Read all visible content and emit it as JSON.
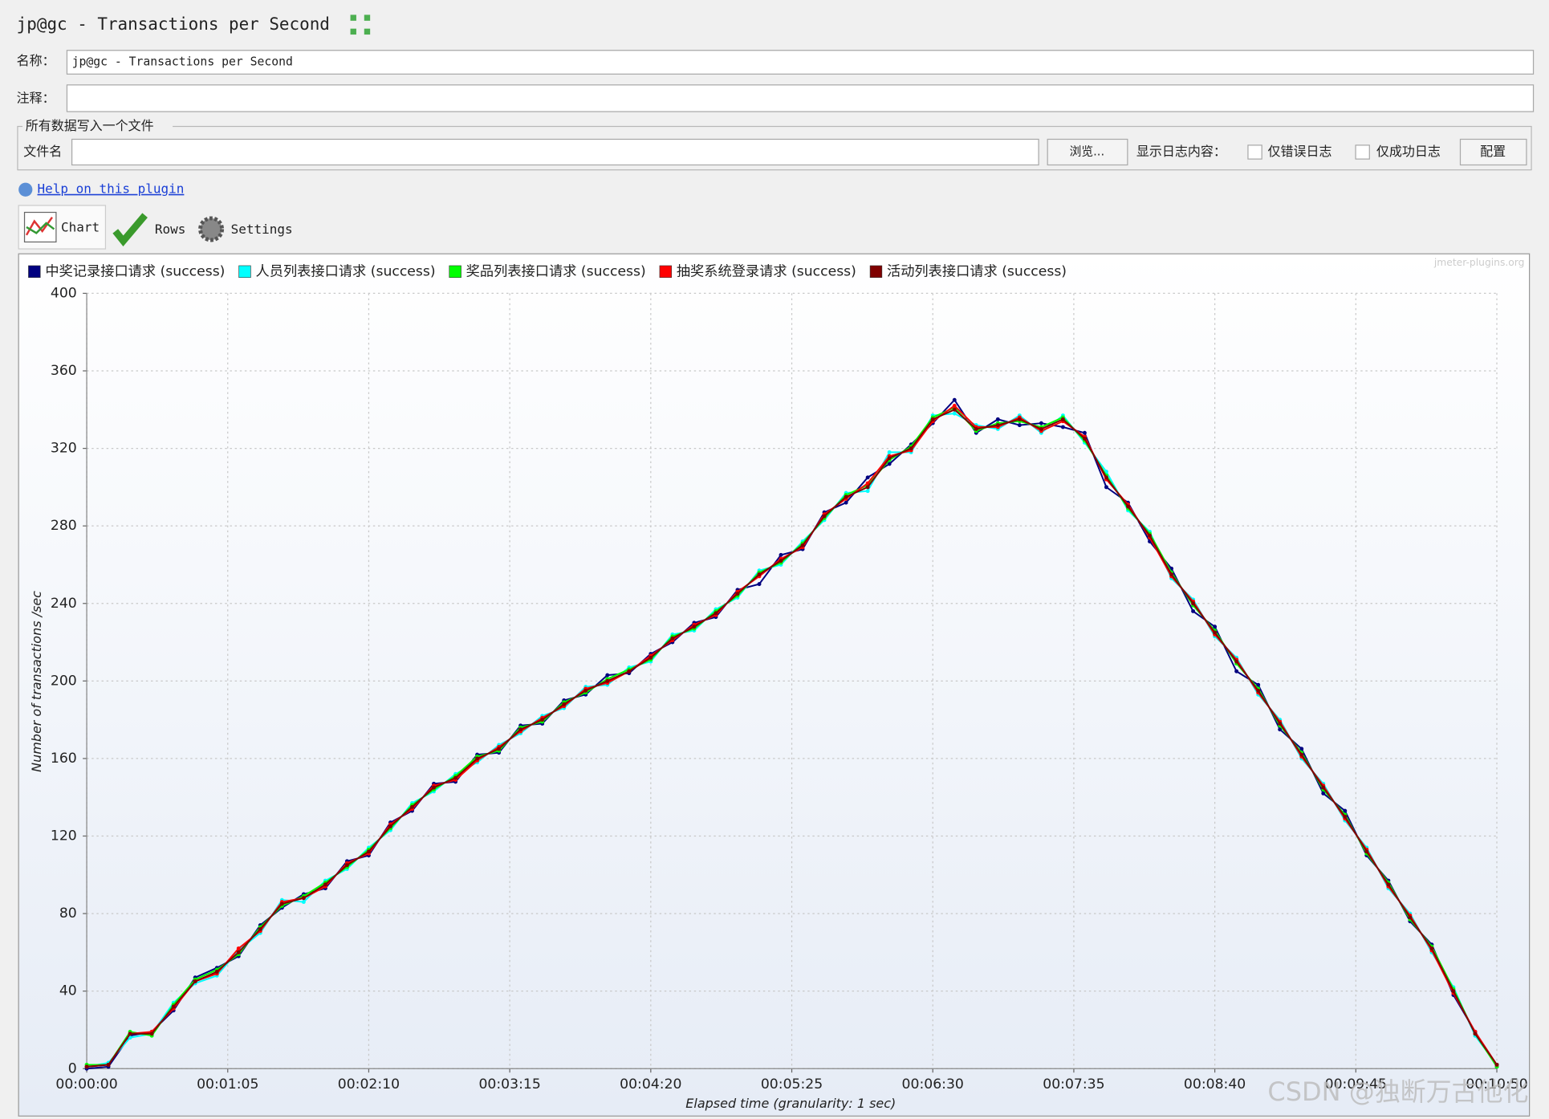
{
  "window": {
    "title": "jp@gc - Transactions per Second",
    "name_label": "名称：",
    "name_value": "jp@gc - Transactions per Second",
    "comment_label": "注释：",
    "file_group": "所有数据写入一个文件",
    "file_label": "文件名",
    "browse": "浏览...",
    "log_label": "显示日志内容：",
    "errors_only": "仅错误日志",
    "success_only": "仅成功日志",
    "configure": "配置",
    "help": "Help on this plugin",
    "tabs": [
      "Chart",
      "Rows",
      "Settings"
    ],
    "watermark": "CSDN @独断万古他化"
  },
  "chart_data": {
    "type": "line",
    "xlabel": "Elapsed time (granularity: 1 sec)",
    "ylabel": "Number of transactions /sec",
    "credit": "jmeter-plugins.org",
    "x": [
      0,
      10,
      20,
      30,
      40,
      50,
      60,
      70,
      80,
      90,
      100,
      110,
      120,
      130,
      140,
      150,
      160,
      170,
      180,
      190,
      200,
      210,
      220,
      230,
      240,
      250,
      260,
      270,
      280,
      290,
      300,
      310,
      320,
      330,
      340,
      350,
      360,
      370,
      380,
      390,
      400,
      410,
      420,
      430,
      440,
      450,
      460,
      470,
      480,
      490,
      500,
      510,
      520,
      530,
      540,
      550,
      560,
      570,
      580,
      590,
      600,
      610,
      620,
      630,
      640,
      650
    ],
    "series": [
      {
        "name": "中奖记录接口请求 (success)",
        "color": "#000080",
        "values": [
          0,
          1,
          17,
          19,
          30,
          47,
          52,
          58,
          74,
          83,
          90,
          93,
          107,
          110,
          127,
          133,
          147,
          148,
          162,
          163,
          177,
          178,
          190,
          193,
          203,
          204,
          214,
          220,
          230,
          233,
          247,
          250,
          265,
          268,
          287,
          292,
          305,
          312,
          322,
          333,
          345,
          328,
          335,
          332,
          333,
          331,
          328,
          300,
          292,
          272,
          258,
          236,
          228,
          205,
          198,
          175,
          165,
          142,
          133,
          110,
          97,
          76,
          64,
          38,
          19,
          1
        ]
      },
      {
        "name": "人员列表接口请求 (success)",
        "color": "#00ffff",
        "values": [
          1,
          3,
          16,
          18,
          34,
          44,
          48,
          61,
          70,
          87,
          86,
          97,
          103,
          114,
          123,
          137,
          143,
          152,
          158,
          167,
          173,
          182,
          186,
          197,
          198,
          207,
          210,
          224,
          226,
          237,
          243,
          257,
          260,
          272,
          283,
          297,
          298,
          318,
          318,
          337,
          338,
          332,
          330,
          337,
          328,
          337,
          323,
          308,
          288,
          277,
          253,
          242,
          223,
          212,
          193,
          180,
          160,
          147,
          128,
          114,
          93,
          80,
          60,
          42,
          17,
          2
        ]
      },
      {
        "name": "奖品列表接口请求 (success)",
        "color": "#00ff00",
        "values": [
          2,
          2,
          19,
          17,
          33,
          46,
          51,
          59,
          73,
          84,
          89,
          96,
          104,
          113,
          124,
          136,
          144,
          151,
          161,
          164,
          176,
          179,
          189,
          194,
          201,
          206,
          211,
          223,
          227,
          236,
          244,
          256,
          261,
          271,
          284,
          296,
          301,
          314,
          321,
          336,
          341,
          329,
          333,
          334,
          331,
          336,
          324,
          306,
          289,
          276,
          256,
          239,
          226,
          209,
          196,
          177,
          163,
          144,
          131,
          111,
          96,
          77,
          63,
          41,
          18,
          1
        ]
      },
      {
        "name": "抽奖系统登录请求 (success)",
        "color": "#ff0000",
        "values": [
          1,
          2,
          18,
          19,
          31,
          45,
          49,
          62,
          71,
          86,
          88,
          94,
          106,
          111,
          126,
          134,
          146,
          149,
          159,
          166,
          174,
          181,
          187,
          196,
          199,
          205,
          213,
          221,
          229,
          234,
          246,
          254,
          263,
          269,
          286,
          294,
          302,
          316,
          319,
          334,
          342,
          331,
          331,
          336,
          329,
          334,
          326,
          304,
          291,
          274,
          254,
          241,
          224,
          211,
          194,
          179,
          161,
          146,
          129,
          113,
          94,
          79,
          61,
          39,
          19,
          2
        ]
      },
      {
        "name": "活动列表接口请求 (success)",
        "color": "#800000",
        "values": [
          1,
          2,
          18,
          18,
          32,
          45,
          50,
          60,
          72,
          85,
          88,
          95,
          105,
          112,
          125,
          135,
          145,
          150,
          160,
          165,
          175,
          180,
          188,
          195,
          200,
          205,
          212,
          222,
          228,
          235,
          245,
          255,
          262,
          270,
          285,
          295,
          300,
          315,
          320,
          335,
          340,
          330,
          332,
          335,
          330,
          335,
          325,
          305,
          290,
          275,
          255,
          240,
          225,
          210,
          195,
          178,
          162,
          145,
          130,
          112,
          95,
          78,
          62,
          40,
          18,
          2
        ]
      }
    ],
    "xlim": [
      0,
      650
    ],
    "ylim": [
      0,
      400
    ],
    "xticks": [
      {
        "value": 0,
        "label": "00:00:00"
      },
      {
        "value": 65,
        "label": "00:01:05"
      },
      {
        "value": 130,
        "label": "00:02:10"
      },
      {
        "value": 195,
        "label": "00:03:15"
      },
      {
        "value": 260,
        "label": "00:04:20"
      },
      {
        "value": 325,
        "label": "00:05:25"
      },
      {
        "value": 390,
        "label": "00:06:30"
      },
      {
        "value": 455,
        "label": "00:07:35"
      },
      {
        "value": 520,
        "label": "00:08:40"
      },
      {
        "value": 585,
        "label": "00:09:45"
      },
      {
        "value": 650,
        "label": "00:10:50"
      }
    ],
    "yticks": [
      0,
      40,
      80,
      120,
      160,
      200,
      240,
      280,
      320,
      360,
      400
    ],
    "grid": true,
    "legend": "top-left"
  }
}
